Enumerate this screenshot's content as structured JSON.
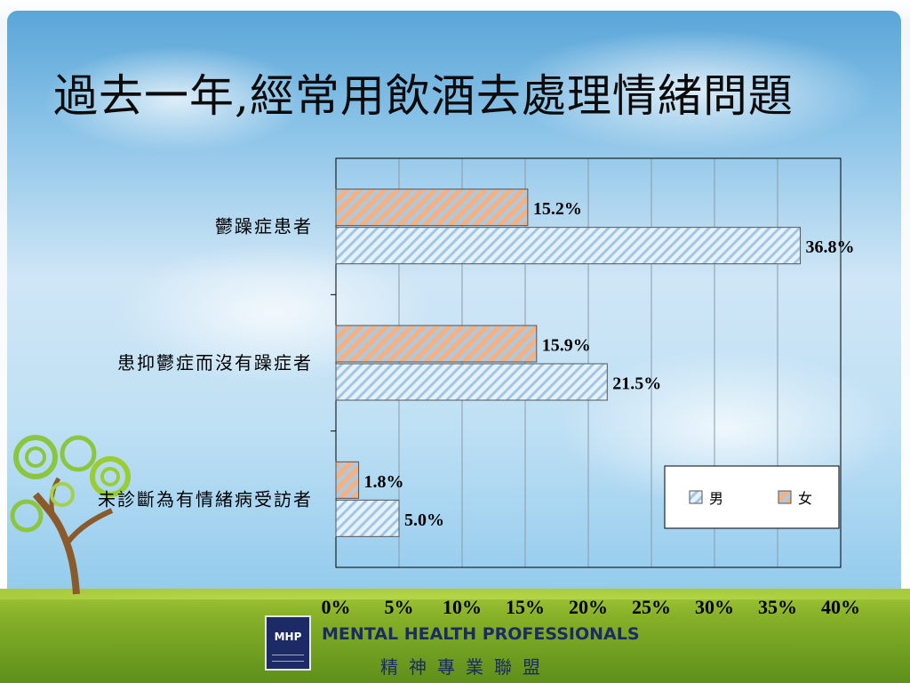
{
  "slide": {
    "title": "過去一年,經常用飲酒去處理情緒問題"
  },
  "branding": {
    "logo_text": "MHP",
    "org_name_en": "MENTAL HEALTH PROFESSIONALS",
    "org_name_zh": "精神專業聯盟",
    "primary_color": "#1c2a66"
  },
  "chart_data": {
    "type": "bar",
    "orientation": "horizontal",
    "categories": [
      "鬱躁症患者",
      "患抑鬱症而沒有躁症者",
      "未診斷為有情緒病受訪者"
    ],
    "series": [
      {
        "name": "女",
        "values": [
          15.2,
          15.9,
          1.8
        ],
        "labels": [
          "15.2%",
          "15.9%",
          "1.8%"
        ],
        "color": "#f4b183",
        "stripe": "#9dc3e6"
      },
      {
        "name": "男",
        "values": [
          36.8,
          21.5,
          5.0
        ],
        "labels": [
          "36.8%",
          "21.5%",
          "5.0%"
        ],
        "color": "#dbeaf6",
        "stripe": "#9dc3e6"
      }
    ],
    "xlim": [
      0,
      40
    ],
    "x_ticks": [
      "0%",
      "5%",
      "10%",
      "15%",
      "20%",
      "25%",
      "30%",
      "35%",
      "40%"
    ],
    "grid": true,
    "legend_position": "bottom-right",
    "legend": [
      "男",
      "女"
    ]
  }
}
